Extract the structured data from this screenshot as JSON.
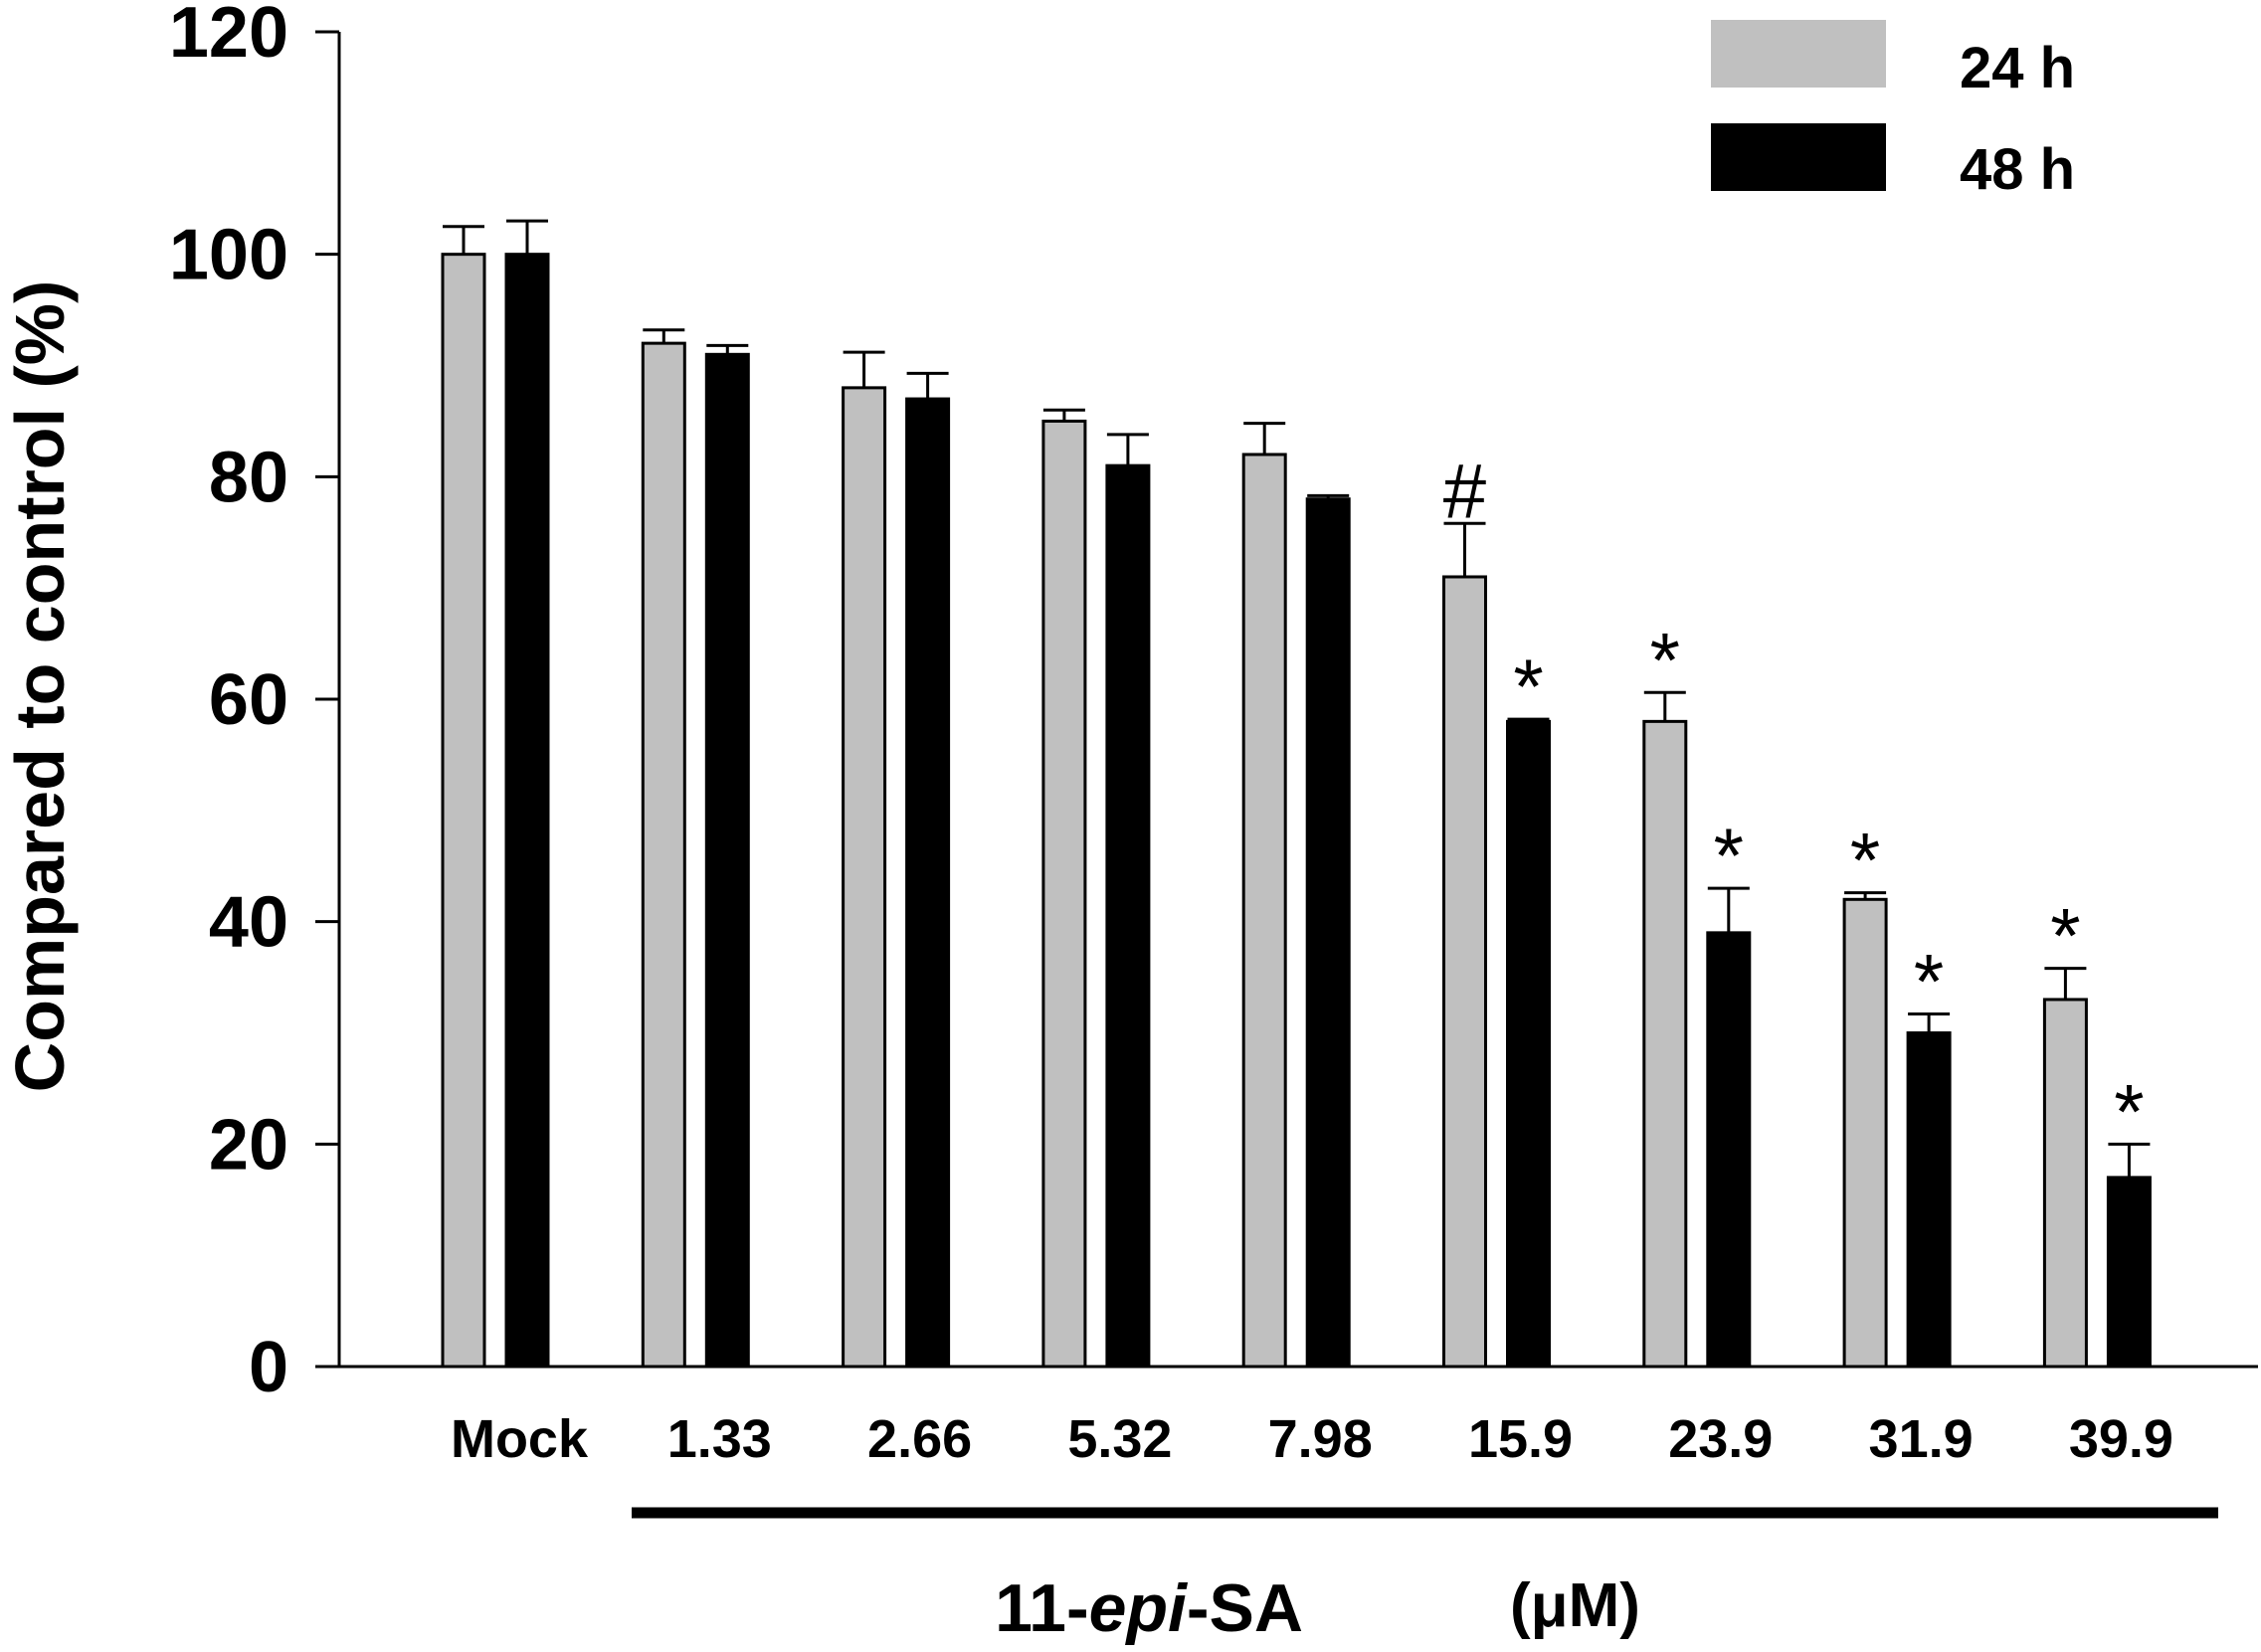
{
  "chart_data": {
    "type": "bar",
    "categories": [
      "Mock",
      "1.33",
      "2.66",
      "5.32",
      "7.98",
      "15.9",
      "23.9",
      "31.9",
      "39.9"
    ],
    "series": [
      {
        "name": "24 h",
        "color": "#c0c0c0",
        "values": [
          100,
          92,
          88,
          85,
          82,
          71,
          58,
          42,
          33
        ],
        "errors": [
          2.5,
          1.2,
          3.2,
          1.0,
          2.8,
          4.8,
          2.6,
          0.6,
          2.8
        ],
        "markers": [
          "",
          "",
          "",
          "",
          "",
          "#",
          "*",
          "*",
          "*"
        ]
      },
      {
        "name": "48 h",
        "color": "#000000",
        "values": [
          100,
          91,
          87,
          81,
          78,
          58,
          39,
          30,
          17
        ],
        "errors": [
          3.0,
          0.8,
          2.3,
          2.8,
          0.3,
          0.2,
          4.0,
          1.7,
          3.0
        ],
        "markers": [
          "",
          "",
          "",
          "",
          "",
          "*",
          "*",
          "*",
          "*"
        ]
      }
    ],
    "ylabel": "Compared to control  (%)",
    "ylim": [
      0,
      120
    ],
    "yticks": [
      "0",
      "20",
      "40",
      "60",
      "80",
      "100",
      "120"
    ],
    "group_label": {
      "prefix": "11-",
      "italic": "epi",
      "suffix": "-SA",
      "unit": "(μM)"
    },
    "legend_position": "top-right"
  }
}
